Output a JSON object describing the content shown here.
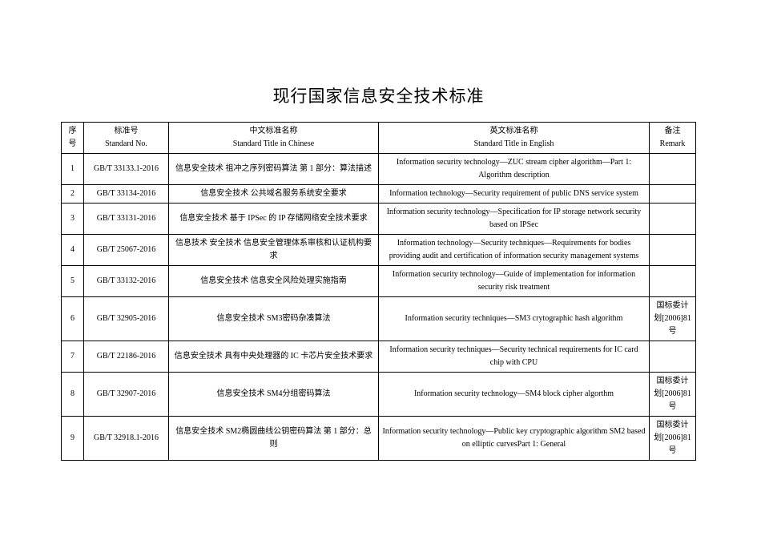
{
  "title": "现行国家信息安全技术标准",
  "table": {
    "columns": {
      "seq": {
        "line1": "序号",
        "line2": ""
      },
      "std_no": {
        "line1": "标准号",
        "line2": "Standard No."
      },
      "cn_title": {
        "line1": "中文标准名称",
        "line2": "Standard Title in Chinese"
      },
      "en_title": {
        "line1": "英文标准名称",
        "line2": "Standard Title in English"
      },
      "remark": {
        "line1": "备注",
        "line2": "Remark"
      }
    },
    "column_widths": {
      "seq": 28,
      "std_no": 106,
      "cn_title": 262,
      "en_title": 338,
      "remark": 58
    },
    "border_color": "#000000",
    "background_color": "#ffffff",
    "font_size": 10,
    "rows": [
      {
        "seq": "1",
        "std_no": "GB/T 33133.1-2016",
        "cn_title": "信息安全技术 祖冲之序列密码算法 第 1 部分：算法描述",
        "en_title": "Information security technology—ZUC stream cipher algorithm—Part 1: Algorithm description",
        "remark": ""
      },
      {
        "seq": "2",
        "std_no": "GB/T 33134-2016",
        "cn_title": "信息安全技术 公共域名服务系统安全要求",
        "en_title": "Information technology—Security requirement of public DNS service system",
        "remark": ""
      },
      {
        "seq": "3",
        "std_no": "GB/T 33131-2016",
        "cn_title": "信息安全技术 基于 IPSec 的 IP 存储网络安全技术要求",
        "en_title": "Information security technology—Specification for IP storage network security based on IPSec",
        "remark": ""
      },
      {
        "seq": "4",
        "std_no": "GB/T 25067-2016",
        "cn_title": "信息技术 安全技术 信息安全管理体系审核和认证机构要求",
        "en_title": "Information technology—Security techniques—Requirements for bodies providing audit and certification of information security management systems",
        "remark": ""
      },
      {
        "seq": "5",
        "std_no": "GB/T 33132-2016",
        "cn_title": "信息安全技术 信息安全风险处理实施指南",
        "en_title": "Information security technology—Guide of implementation for information security risk treatment",
        "remark": ""
      },
      {
        "seq": "6",
        "std_no": "GB/T 32905-2016",
        "cn_title": "信息安全技术 SM3密码杂凑算法",
        "en_title": "Information security techniques—SM3 crytographic hash algorithm",
        "remark": "国标委计划[2006]81 号"
      },
      {
        "seq": "7",
        "std_no": "GB/T 22186-2016",
        "cn_title": "信息安全技术 具有中央处理器的 IC 卡芯片安全技术要求",
        "en_title": "Information security techniques—Security technical requirements for IC card chip with CPU",
        "remark": ""
      },
      {
        "seq": "8",
        "std_no": "GB/T 32907-2016",
        "cn_title": "信息安全技术 SM4分组密码算法",
        "en_title": "Information security technology—SM4 block cipher algorthm",
        "remark": "国标委计划[2006]81 号"
      },
      {
        "seq": "9",
        "std_no": "GB/T 32918.1-2016",
        "cn_title": "信息安全技术 SM2椭圆曲线公钥密码算法 第 1 部分：总则",
        "en_title": "Information security technology—Public key cryptographic algorithm SM2 based on elliptic curvesPart 1: General",
        "remark": "国标委计划[2006]81 号"
      }
    ]
  },
  "style": {
    "title_fontsize": 21,
    "body_fontsize": 10,
    "font_family": "SimSun",
    "text_color": "#000000",
    "background_color": "#ffffff"
  }
}
